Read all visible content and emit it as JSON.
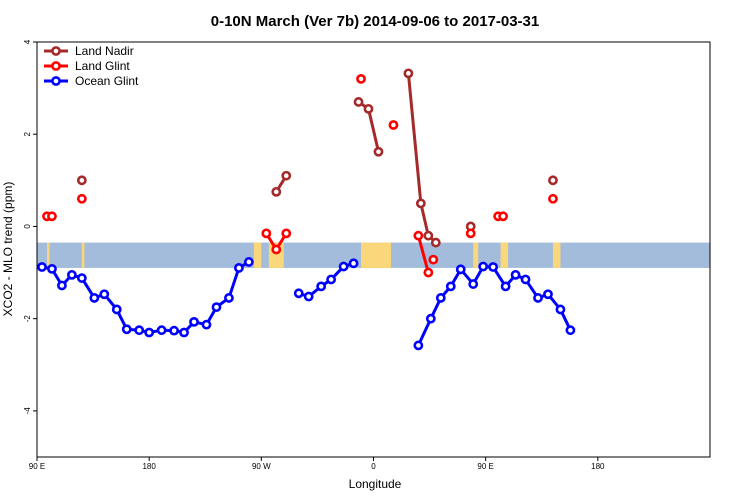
{
  "chart_data": {
    "type": "line",
    "title": "0-10N March (Ver 7b)   2014-09-06 to 2017-03-31",
    "xlabel": "Longitude",
    "ylabel": "XCO2 - MLO trend (ppm)",
    "xlim": [
      -90,
      180
    ],
    "ylim": [
      -5,
      4
    ],
    "x_ticks": [
      {
        "value": -90,
        "label": "90 E"
      },
      {
        "value": -45,
        "label": "180"
      },
      {
        "value": 0,
        "label": "90 W"
      },
      {
        "value": 45,
        "label": "0"
      },
      {
        "value": 90,
        "label": "90 E"
      },
      {
        "value": 135,
        "label": "180"
      }
    ],
    "y_ticks": [
      {
        "value": -4,
        "label": "-4"
      },
      {
        "value": -2,
        "label": "-2"
      },
      {
        "value": 0,
        "label": "0"
      },
      {
        "value": 2,
        "label": "2"
      },
      {
        "value": 4,
        "label": "4"
      }
    ],
    "legend_position": "top-left",
    "band": {
      "y_range": [
        -0.9,
        -0.35
      ],
      "ocean_color": "#a4bcdc",
      "land_color": "#f9d77a",
      "land_segments": [
        [
          -86,
          -85
        ],
        [
          -72,
          -71
        ],
        [
          -3,
          0
        ],
        [
          3,
          9
        ],
        [
          40,
          52
        ],
        [
          85,
          87
        ],
        [
          96,
          99
        ],
        [
          117,
          120
        ]
      ]
    },
    "series": [
      {
        "name": "Land Nadir",
        "color": "#a52a2a",
        "segments": [
          [
            [
              -72,
              1.0
            ]
          ],
          [
            [
              6,
              0.75
            ],
            [
              10,
              1.1
            ]
          ],
          [
            [
              39,
              2.7
            ],
            [
              43,
              2.55
            ],
            [
              47,
              1.62
            ]
          ],
          [
            [
              59,
              3.32
            ],
            [
              64,
              0.5
            ],
            [
              67,
              -0.2
            ],
            [
              70,
              -0.35
            ]
          ],
          [
            [
              84,
              0.0
            ]
          ],
          [
            [
              117,
              1.0
            ]
          ]
        ]
      },
      {
        "name": "Land Glint",
        "color": "#ff0000",
        "segments": [
          [
            [
              -86,
              0.22
            ],
            [
              -84,
              0.22
            ]
          ],
          [
            [
              -72,
              0.6
            ]
          ],
          [
            [
              2,
              -0.15
            ],
            [
              6,
              -0.5
            ],
            [
              10,
              -0.15
            ]
          ],
          [
            [
              40,
              3.2
            ]
          ],
          [
            [
              53,
              2.2
            ]
          ],
          [
            [
              63,
              -0.2
            ],
            [
              67,
              -1.0
            ]
          ],
          [
            [
              69,
              -0.72
            ]
          ],
          [
            [
              84,
              -0.15
            ]
          ],
          [
            [
              95,
              0.22
            ],
            [
              97,
              0.22
            ]
          ],
          [
            [
              117,
              0.6
            ]
          ]
        ]
      },
      {
        "name": "Ocean Glint",
        "color": "#0000ff",
        "segments": [
          [
            [
              -88,
              -0.88
            ],
            [
              -84,
              -0.92
            ],
            [
              -80,
              -1.28
            ],
            [
              -76,
              -1.05
            ],
            [
              -72,
              -1.12
            ],
            [
              -67,
              -1.55
            ],
            [
              -63,
              -1.47
            ],
            [
              -58,
              -1.8
            ],
            [
              -54,
              -2.23
            ],
            [
              -49,
              -2.25
            ],
            [
              -45,
              -2.3
            ],
            [
              -40,
              -2.25
            ],
            [
              -35,
              -2.26
            ],
            [
              -31,
              -2.3
            ],
            [
              -27,
              -2.07
            ],
            [
              -22,
              -2.13
            ],
            [
              -18,
              -1.75
            ],
            [
              -13,
              -1.55
            ],
            [
              -9,
              -0.9
            ],
            [
              -5,
              -0.77
            ]
          ],
          [
            [
              15,
              -1.45
            ],
            [
              19,
              -1.52
            ],
            [
              24,
              -1.3
            ],
            [
              28,
              -1.15
            ],
            [
              33,
              -0.87
            ],
            [
              37,
              -0.8
            ]
          ],
          [
            [
              63,
              -2.58
            ],
            [
              68,
              -2.0
            ],
            [
              72,
              -1.55
            ],
            [
              76,
              -1.3
            ],
            [
              80,
              -0.93
            ],
            [
              85,
              -1.25
            ],
            [
              89,
              -0.87
            ],
            [
              93,
              -0.88
            ],
            [
              98,
              -1.3
            ],
            [
              102,
              -1.05
            ],
            [
              106,
              -1.15
            ],
            [
              111,
              -1.55
            ],
            [
              115,
              -1.47
            ],
            [
              120,
              -1.8
            ],
            [
              124,
              -2.25
            ]
          ]
        ]
      }
    ]
  }
}
